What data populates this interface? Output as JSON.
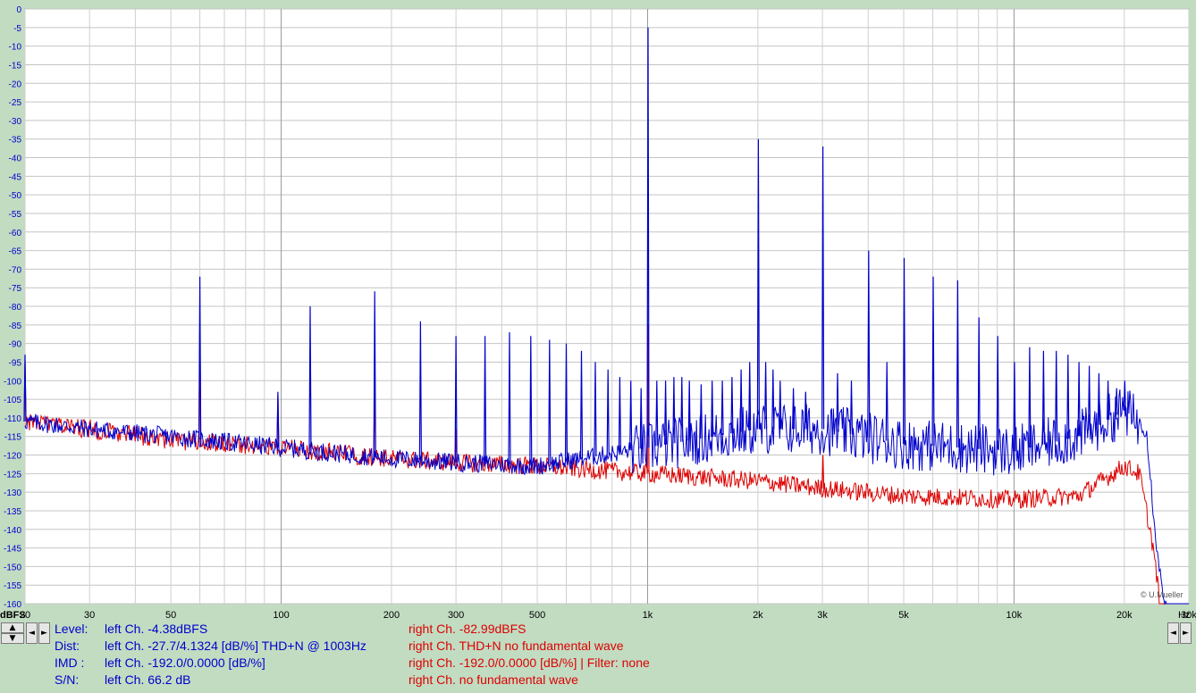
{
  "chart_data": {
    "type": "line",
    "title": "",
    "x_scale": "log",
    "xlim": [
      20,
      30000
    ],
    "ylim": [
      -160,
      0
    ],
    "y_unit_label": "dBFS",
    "x_unit_label": "Hz",
    "grid": true,
    "y_ticks": [
      0,
      -5,
      -10,
      -15,
      -20,
      -25,
      -30,
      -35,
      -40,
      -45,
      -50,
      -55,
      -60,
      -65,
      -70,
      -75,
      -80,
      -85,
      -90,
      -95,
      -100,
      -105,
      -110,
      -115,
      -120,
      -125,
      -130,
      -135,
      -140,
      -145,
      -150,
      -155,
      -160
    ],
    "x_ticks": [
      {
        "value": 20,
        "label": "20"
      },
      {
        "value": 30,
        "label": "30"
      },
      {
        "value": 50,
        "label": "50"
      },
      {
        "value": 100,
        "label": "100"
      },
      {
        "value": 200,
        "label": "200"
      },
      {
        "value": 300,
        "label": "300"
      },
      {
        "value": 500,
        "label": "500"
      },
      {
        "value": 1000,
        "label": "1k"
      },
      {
        "value": 2000,
        "label": "2k"
      },
      {
        "value": 3000,
        "label": "3k"
      },
      {
        "value": 5000,
        "label": "5k"
      },
      {
        "value": 10000,
        "label": "10k"
      },
      {
        "value": 20000,
        "label": "20k"
      },
      {
        "value": 30000,
        "label": "30k"
      }
    ],
    "series": [
      {
        "color": "#0000cc",
        "noise_floor": [
          [
            20,
            -111
          ],
          [
            30,
            -113
          ],
          [
            50,
            -115
          ],
          [
            100,
            -118
          ],
          [
            200,
            -121
          ],
          [
            300,
            -122
          ],
          [
            500,
            -123
          ],
          [
            1000,
            -118
          ],
          [
            2000,
            -113
          ],
          [
            3000,
            -113
          ],
          [
            5000,
            -117
          ],
          [
            10000,
            -119
          ],
          [
            15000,
            -115
          ],
          [
            20000,
            -108
          ],
          [
            23000,
            -113
          ],
          [
            24000,
            -135
          ],
          [
            25000,
            -152
          ],
          [
            26000,
            -160
          ],
          [
            30000,
            -160
          ]
        ],
        "peaks": [
          [
            20,
            -93
          ],
          [
            60,
            -72
          ],
          [
            98,
            -103
          ],
          [
            120,
            -80
          ],
          [
            180,
            -76
          ],
          [
            240,
            -84
          ],
          [
            300,
            -88
          ],
          [
            360,
            -88
          ],
          [
            420,
            -87
          ],
          [
            480,
            -88
          ],
          [
            540,
            -89
          ],
          [
            600,
            -90
          ],
          [
            660,
            -92
          ],
          [
            720,
            -95
          ],
          [
            780,
            -97
          ],
          [
            840,
            -99
          ],
          [
            900,
            -100
          ],
          [
            960,
            -102
          ],
          [
            1003,
            -5
          ],
          [
            1060,
            -100
          ],
          [
            1120,
            -100
          ],
          [
            1180,
            -99
          ],
          [
            1240,
            -99
          ],
          [
            1300,
            -100
          ],
          [
            1400,
            -101
          ],
          [
            1500,
            -100
          ],
          [
            1600,
            -100
          ],
          [
            1700,
            -99
          ],
          [
            1800,
            -97
          ],
          [
            1900,
            -95
          ],
          [
            2006,
            -35
          ],
          [
            2100,
            -95
          ],
          [
            2200,
            -97
          ],
          [
            2300,
            -100
          ],
          [
            2500,
            -102
          ],
          [
            2700,
            -103
          ],
          [
            3009,
            -37
          ],
          [
            3300,
            -98
          ],
          [
            3600,
            -100
          ],
          [
            4012,
            -65
          ],
          [
            4500,
            -95
          ],
          [
            5015,
            -67
          ],
          [
            6018,
            -72
          ],
          [
            7021,
            -73
          ],
          [
            8024,
            -83
          ],
          [
            9027,
            -88
          ],
          [
            10030,
            -95
          ],
          [
            11033,
            -91
          ],
          [
            12036,
            -92
          ],
          [
            13039,
            -92
          ],
          [
            14042,
            -93
          ],
          [
            15045,
            -95
          ],
          [
            16048,
            -96
          ],
          [
            17051,
            -98
          ],
          [
            18054,
            -100
          ],
          [
            19057,
            -102
          ],
          [
            20060,
            -100
          ]
        ]
      },
      {
        "color": "#dd0000",
        "noise_floor": [
          [
            20,
            -111
          ],
          [
            30,
            -113
          ],
          [
            50,
            -116
          ],
          [
            100,
            -118
          ],
          [
            200,
            -121
          ],
          [
            300,
            -122
          ],
          [
            500,
            -123
          ],
          [
            1000,
            -125
          ],
          [
            2000,
            -127
          ],
          [
            3000,
            -129
          ],
          [
            5000,
            -131
          ],
          [
            10000,
            -132
          ],
          [
            15000,
            -131
          ],
          [
            20000,
            -123
          ],
          [
            22000,
            -125
          ],
          [
            24000,
            -145
          ],
          [
            25000,
            -160
          ],
          [
            30000,
            -160
          ]
        ],
        "peaks": [
          [
            20,
            -95
          ],
          [
            60,
            -85
          ],
          [
            98,
            -104
          ],
          [
            180,
            -98
          ],
          [
            300,
            -113
          ],
          [
            1003,
            -85
          ],
          [
            3009,
            -120
          ]
        ]
      }
    ]
  },
  "readout": {
    "level": {
      "label": "Level:",
      "left": "left Ch. -4.38dBFS",
      "right": "right Ch. -82.99dBFS"
    },
    "dist": {
      "label": "Dist:",
      "left": "left Ch. -27.7/4.1324 [dB/%] THD+N  @ 1003Hz",
      "right": "right Ch. THD+N  no fundamental wave"
    },
    "imd": {
      "label": "IMD  :",
      "left": "left Ch. -192.0/0.0000 [dB/%]",
      "right": "right Ch. -192.0/0.0000 [dB/%] |    Filter: none"
    },
    "sn": {
      "label": "S/N:",
      "left": "left Ch. 66.2 dB",
      "right": "right Ch.  no fundamental wave"
    }
  },
  "copyright": "© U.Mueller",
  "buttons": {
    "up": "▲",
    "down": "▼",
    "left": "◄",
    "right": "►"
  }
}
